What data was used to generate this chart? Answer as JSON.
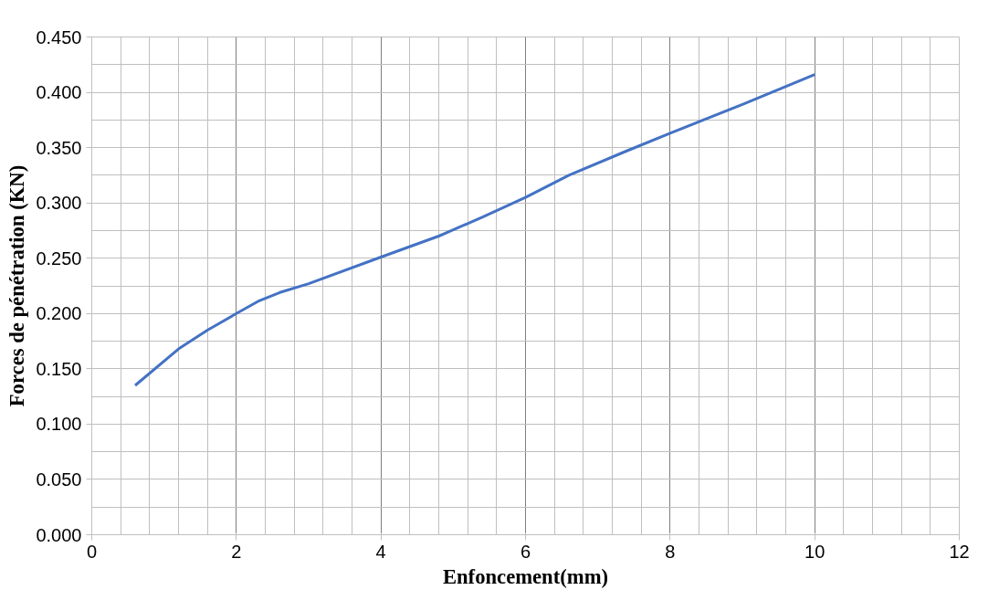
{
  "chart_data": {
    "type": "line",
    "xlabel": "Enfoncement(mm)",
    "ylabel": "Forces de pénétration (KN)",
    "x": [
      0.6,
      1.2,
      1.6,
      2.0,
      2.3,
      2.6,
      3.0,
      4.0,
      4.8,
      5.4,
      6.0,
      6.6,
      7.4,
      8.0,
      9.0,
      10.0
    ],
    "series": [
      {
        "color": "#4472c4",
        "values": [
          0.135,
          0.168,
          0.185,
          0.2,
          0.211,
          0.219,
          0.227,
          0.251,
          0.27,
          0.287,
          0.305,
          0.325,
          0.347,
          0.363,
          0.389,
          0.416
        ]
      }
    ],
    "xlim": [
      0,
      12
    ],
    "xticks": [
      0,
      2,
      4,
      6,
      8,
      10,
      12
    ],
    "ylim": [
      0,
      0.45
    ],
    "yticks": [
      {
        "value": 0,
        "label": "0.000"
      },
      {
        "value": 0.05,
        "label": "0.050"
      },
      {
        "value": 0.1,
        "label": "0.100"
      },
      {
        "value": 0.15,
        "label": "0.150"
      },
      {
        "value": 0.2,
        "label": "0.200"
      },
      {
        "value": 0.25,
        "label": "0.250"
      },
      {
        "value": 0.3,
        "label": "0.300"
      },
      {
        "value": 0.35,
        "label": "0.350"
      },
      {
        "value": 0.4,
        "label": "0.400"
      },
      {
        "value": 0.45,
        "label": "0.450"
      }
    ],
    "grid": true,
    "marker": "none",
    "line_style": "solid"
  }
}
